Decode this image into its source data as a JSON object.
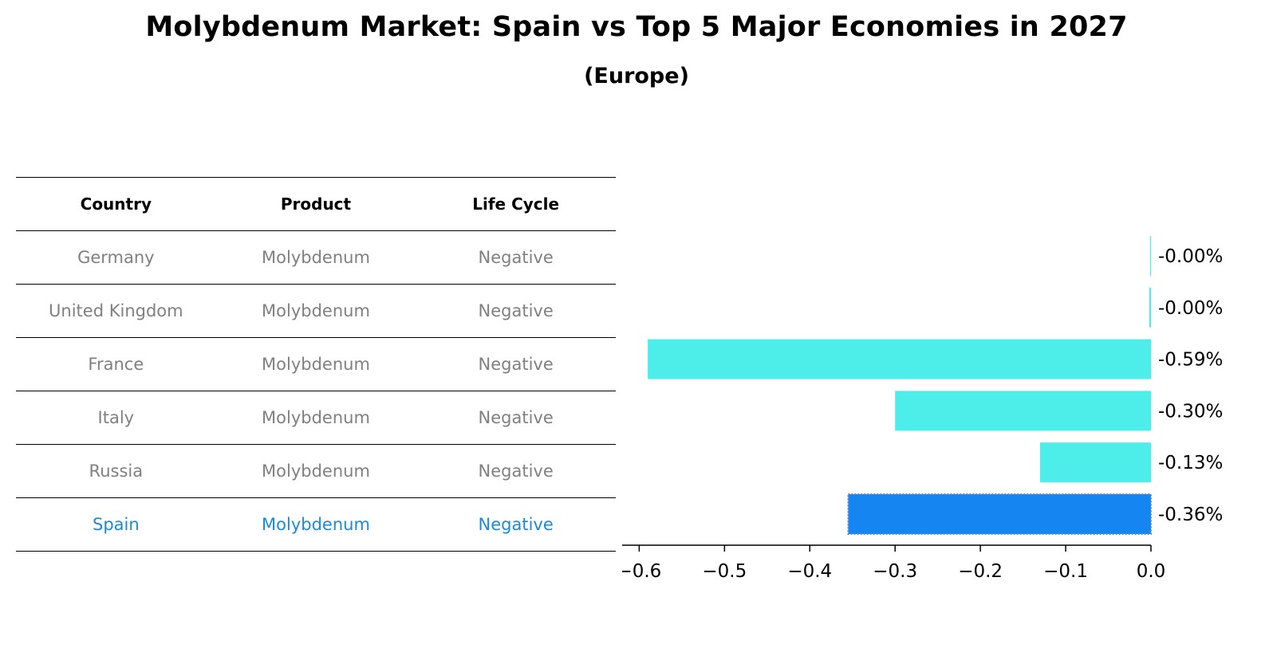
{
  "title": "Molybdenum Market: Spain vs Top 5 Major Economies in 2027",
  "subtitle": "(Europe)",
  "table": {
    "headers": [
      "Country",
      "Product",
      "Life Cycle"
    ],
    "rows": [
      {
        "country": "Germany",
        "product": "Molybdenum",
        "life_cycle": "Negative"
      },
      {
        "country": "United Kingdom",
        "product": "Molybdenum",
        "life_cycle": "Negative"
      },
      {
        "country": "France",
        "product": "Molybdenum",
        "life_cycle": "Negative"
      },
      {
        "country": "Italy",
        "product": "Molybdenum",
        "life_cycle": "Negative"
      },
      {
        "country": "Russia",
        "product": "Molybdenum",
        "life_cycle": "Negative"
      },
      {
        "country": "Spain",
        "product": "Molybdenum",
        "life_cycle": "Negative"
      }
    ],
    "highlight_row": 5
  },
  "colors": {
    "bar": "#4deeea",
    "highlight_bar": "#1585f2",
    "highlight_text": "#1a8ad9",
    "muted_text": "#808080"
  },
  "chart_data": {
    "type": "bar",
    "orientation": "horizontal",
    "categories": [
      "Germany",
      "United Kingdom",
      "France",
      "Italy",
      "Russia",
      "Spain"
    ],
    "values": [
      -0.001,
      -0.002,
      -0.59,
      -0.3,
      -0.13,
      -0.355
    ],
    "value_labels": [
      "-0.00%",
      "-0.00%",
      "-0.59%",
      "-0.30%",
      "-0.13%",
      "-0.36%"
    ],
    "xlim": [
      -0.62,
      0.0
    ],
    "xticks": [
      -0.6,
      -0.5,
      -0.4,
      -0.3,
      -0.2,
      -0.1,
      0.0
    ],
    "xtick_labels": [
      "−0.6",
      "−0.5",
      "−0.4",
      "−0.3",
      "−0.2",
      "−0.1",
      "0.0"
    ],
    "highlight_index": 5,
    "xlabel": "",
    "ylabel": "",
    "grid": false
  }
}
